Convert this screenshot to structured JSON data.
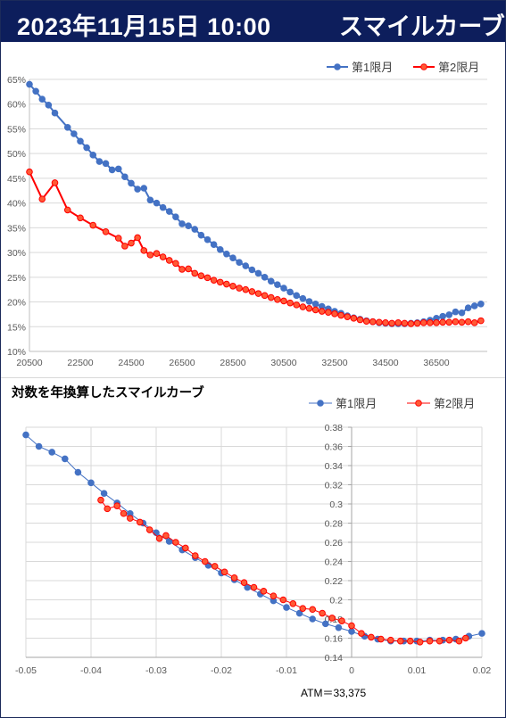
{
  "header": {
    "date": "2023年11月15日 10:00",
    "title": "スマイルカーブ"
  },
  "colors": {
    "series1": "#4472c4",
    "series2": "#ff0000",
    "series2_fill": "#ff5a36",
    "header_bg": "#0d1e5c"
  },
  "chart_data": [
    {
      "type": "line",
      "title": "",
      "xlabel": "",
      "ylabel": "",
      "x_ticks": [
        "20500",
        "22500",
        "24500",
        "26500",
        "28500",
        "30500",
        "32500",
        "34500",
        "36500"
      ],
      "y_ticks": [
        "10%",
        "15%",
        "20%",
        "25%",
        "30%",
        "35%",
        "40%",
        "45%",
        "50%",
        "55%",
        "60%",
        "65%"
      ],
      "xlim": [
        20500,
        38500
      ],
      "ylim": [
        10,
        65
      ],
      "grid": true,
      "legend_position": "top-right",
      "series": [
        {
          "name": "第1限月",
          "x": [
            20500,
            20750,
            21000,
            21250,
            21500,
            22000,
            22250,
            22500,
            22750,
            23000,
            23250,
            23500,
            23750,
            24000,
            24250,
            24500,
            24750,
            25000,
            25250,
            25500,
            25750,
            26000,
            26250,
            26500,
            26750,
            27000,
            27250,
            27500,
            27750,
            28000,
            28250,
            28500,
            28750,
            29000,
            29250,
            29500,
            29750,
            30000,
            30250,
            30500,
            30750,
            31000,
            31250,
            31500,
            31750,
            32000,
            32250,
            32500,
            32750,
            33000,
            33250,
            33500,
            33750,
            34000,
            34250,
            34500,
            34750,
            35000,
            35250,
            35500,
            35750,
            36000,
            36250,
            36500,
            36750,
            37000,
            37250,
            37500,
            37750,
            38000,
            38250
          ],
          "y": [
            64,
            62.6,
            61,
            59.8,
            58.2,
            55.3,
            54,
            52.5,
            51.2,
            49.7,
            48.4,
            48,
            46.7,
            46.9,
            45.3,
            44,
            42.8,
            43,
            40.6,
            40,
            39.1,
            38.3,
            37.2,
            35.8,
            35.4,
            34.7,
            33.5,
            32.6,
            31.6,
            30.6,
            29.7,
            28.9,
            28,
            27.3,
            26.5,
            25.8,
            25,
            24.2,
            23.5,
            22.8,
            22,
            21.3,
            20.7,
            20.1,
            19.6,
            19.1,
            18.6,
            18.1,
            17.7,
            17.2,
            16.8,
            16.5,
            16.2,
            16,
            15.8,
            15.7,
            15.6,
            15.6,
            15.6,
            15.7,
            15.8,
            16,
            16.3,
            16.7,
            17.1,
            17.4,
            18,
            17.8,
            18.8,
            19.2,
            19.6
          ]
        },
        {
          "name": "第2限月",
          "x": [
            20500,
            21000,
            21500,
            22000,
            22500,
            23000,
            23500,
            24000,
            24250,
            24500,
            24750,
            25000,
            25250,
            25500,
            25750,
            26000,
            26250,
            26500,
            26750,
            27000,
            27250,
            27500,
            27750,
            28000,
            28250,
            28500,
            28750,
            29000,
            29250,
            29500,
            29750,
            30000,
            30250,
            30500,
            30750,
            31000,
            31250,
            31500,
            31750,
            32000,
            32250,
            32500,
            32750,
            33000,
            33250,
            33500,
            33750,
            34000,
            34250,
            34500,
            34750,
            35000,
            35250,
            35500,
            35750,
            36000,
            36250,
            36500,
            36750,
            37000,
            37250,
            37500,
            37750,
            38000,
            38250
          ],
          "y": [
            46.3,
            40.8,
            44.1,
            38.6,
            37,
            35.5,
            34.2,
            32.9,
            31.3,
            31.9,
            33,
            30.4,
            29.5,
            29.8,
            29.1,
            28.4,
            27.8,
            26.6,
            26.7,
            25.8,
            25.3,
            24.9,
            24.4,
            24,
            23.6,
            23.2,
            22.8,
            22.5,
            22.1,
            21.7,
            21.3,
            20.9,
            20.5,
            20.2,
            19.8,
            19.4,
            19,
            18.7,
            18.4,
            18.1,
            17.9,
            17.6,
            17.3,
            17,
            16.7,
            16.4,
            16.1,
            16,
            15.9,
            15.8,
            15.7,
            15.8,
            15.7,
            15.6,
            15.7,
            15.8,
            15.8,
            15.8,
            15.9,
            15.9,
            16,
            15.9,
            16,
            15.8,
            16.2
          ]
        }
      ]
    },
    {
      "type": "scatter",
      "title": "対数を年換算したスマイルカーブ",
      "xlabel": "",
      "ylabel": "",
      "x_ticks": [
        "-0.05",
        "-0.04",
        "-0.03",
        "-0.02",
        "-0.01",
        "0",
        "0.01",
        "0.02"
      ],
      "y_ticks": [
        "0.14",
        "0.16",
        "0.18",
        "0.2",
        "0.22",
        "0.24",
        "0.26",
        "0.28",
        "0.3",
        "0.32",
        "0.34",
        "0.36",
        "0.38"
      ],
      "xlim": [
        -0.05,
        0.02
      ],
      "ylim": [
        0.14,
        0.38
      ],
      "grid": true,
      "legend_position": "top-right",
      "annotation": "ATM＝33,375",
      "series": [
        {
          "name": "第1限月",
          "x": [
            -0.05,
            -0.048,
            -0.046,
            -0.044,
            -0.042,
            -0.04,
            -0.038,
            -0.036,
            -0.034,
            -0.032,
            -0.03,
            -0.028,
            -0.026,
            -0.024,
            -0.022,
            -0.02,
            -0.018,
            -0.016,
            -0.014,
            -0.012,
            -0.01,
            -0.008,
            -0.006,
            -0.004,
            -0.002,
            0,
            0.002,
            0.004,
            0.006,
            0.008,
            0.01,
            0.012,
            0.014,
            0.016,
            0.018,
            0.02
          ],
          "y": [
            0.372,
            0.36,
            0.354,
            0.347,
            0.333,
            0.322,
            0.311,
            0.301,
            0.29,
            0.28,
            0.27,
            0.261,
            0.252,
            0.244,
            0.236,
            0.228,
            0.221,
            0.213,
            0.206,
            0.199,
            0.192,
            0.186,
            0.18,
            0.175,
            0.171,
            0.167,
            0.162,
            0.159,
            0.157,
            0.157,
            0.157,
            0.158,
            0.158,
            0.159,
            0.162,
            0.165
          ]
        },
        {
          "name": "第2限月",
          "x": [
            -0.0385,
            -0.0375,
            -0.036,
            -0.035,
            -0.034,
            -0.0325,
            -0.031,
            -0.0295,
            -0.0285,
            -0.027,
            -0.0255,
            -0.024,
            -0.0225,
            -0.021,
            -0.0195,
            -0.018,
            -0.0165,
            -0.015,
            -0.0135,
            -0.012,
            -0.0105,
            -0.009,
            -0.0075,
            -0.006,
            -0.0045,
            -0.003,
            -0.0015,
            0,
            0.0015,
            0.003,
            0.0045,
            0.006,
            0.0075,
            0.009,
            0.0105,
            0.012,
            0.0135,
            0.015,
            0.0165,
            0.0175
          ],
          "y": [
            0.304,
            0.295,
            0.298,
            0.29,
            0.285,
            0.281,
            0.273,
            0.264,
            0.267,
            0.26,
            0.254,
            0.246,
            0.24,
            0.235,
            0.229,
            0.223,
            0.218,
            0.213,
            0.209,
            0.204,
            0.2,
            0.196,
            0.191,
            0.19,
            0.186,
            0.181,
            0.178,
            0.173,
            0.165,
            0.161,
            0.159,
            0.158,
            0.157,
            0.157,
            0.156,
            0.157,
            0.157,
            0.158,
            0.157,
            0.16
          ]
        }
      ]
    }
  ]
}
